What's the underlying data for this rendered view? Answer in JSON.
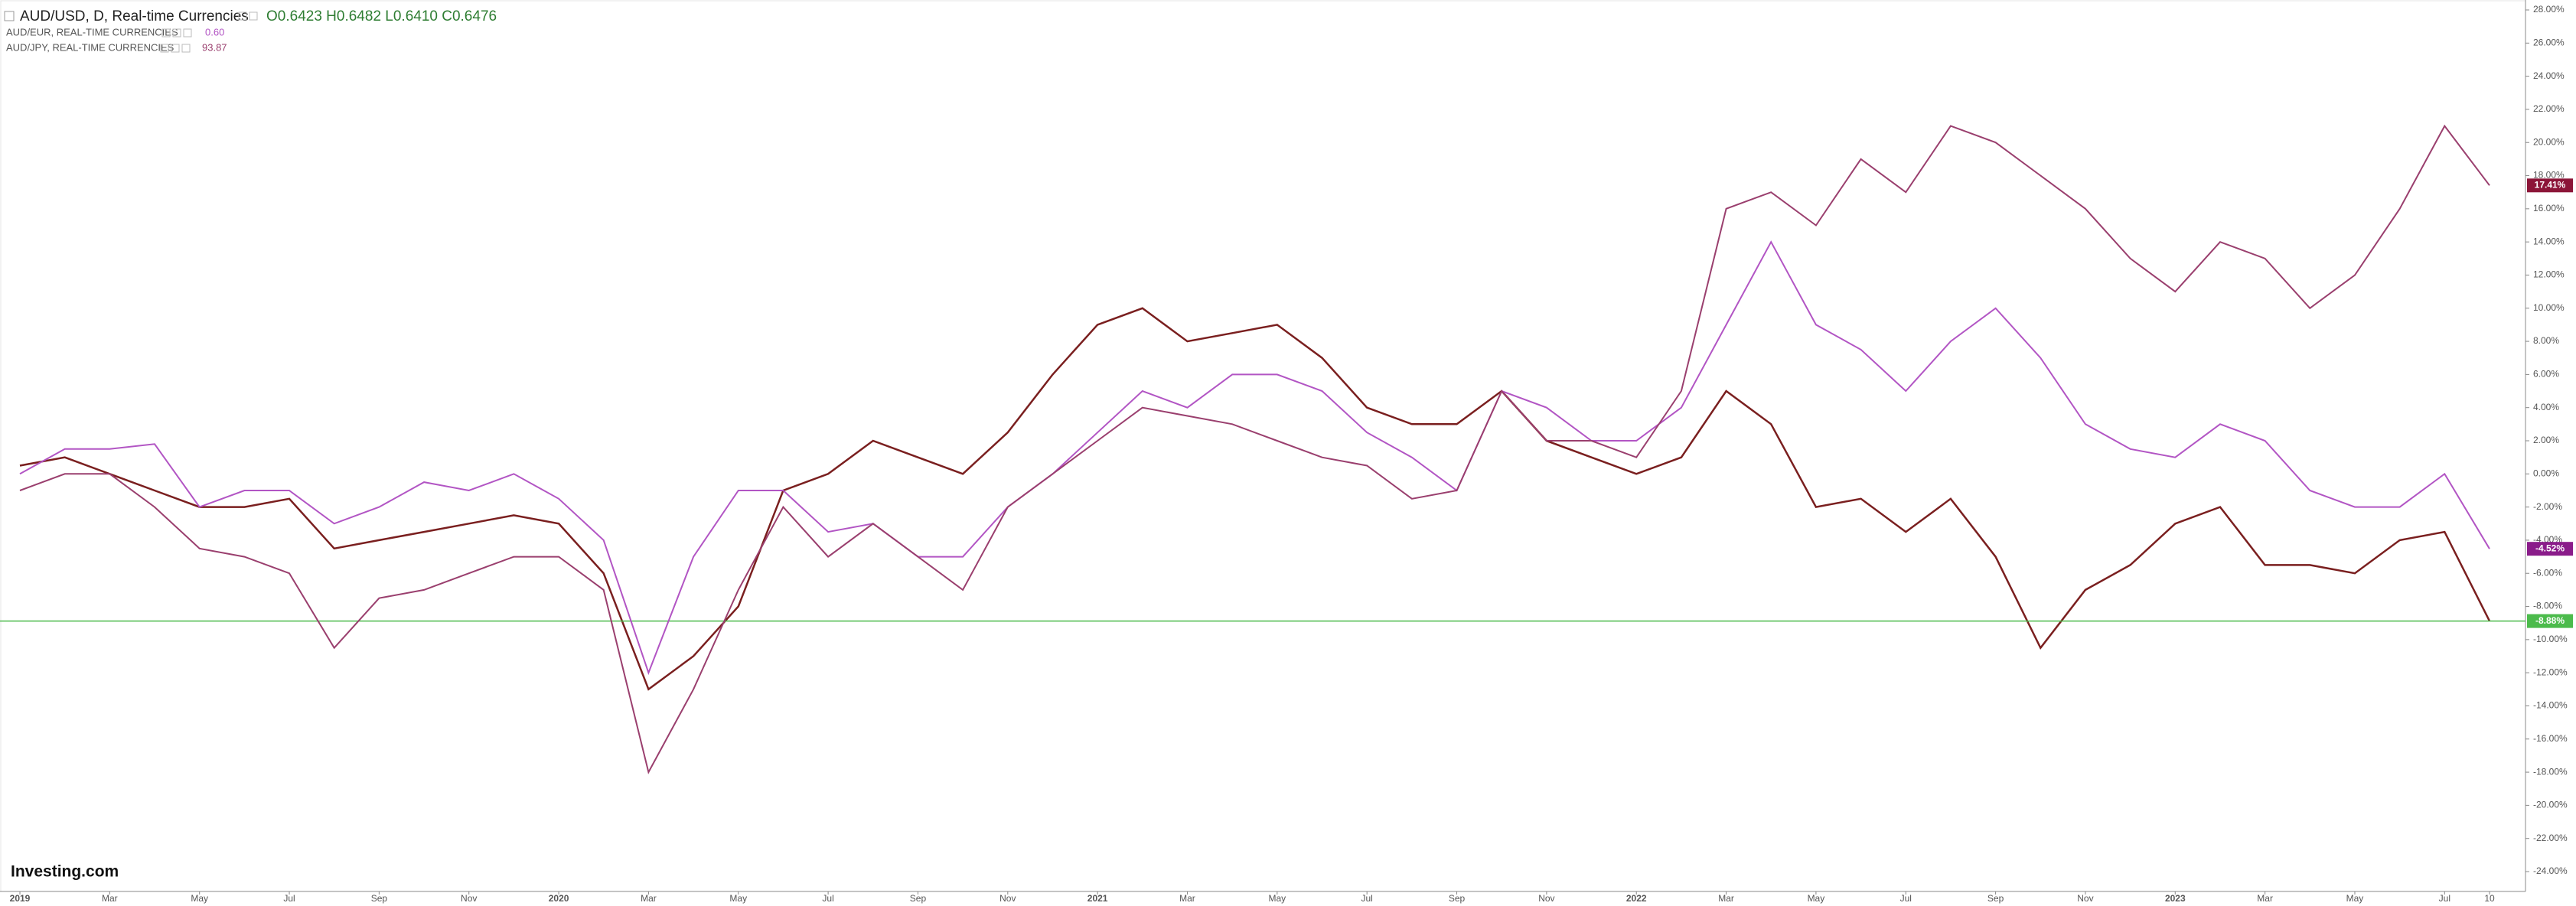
{
  "chart_data": {
    "type": "line",
    "ohlc_label": "O0.6423 H0.6482 L0.6410 C0.6476",
    "logo": "Investing.com",
    "x": [
      "2019-01",
      "2019-02",
      "2019-03",
      "2019-04",
      "2019-05",
      "2019-06",
      "2019-07",
      "2019-08",
      "2019-09",
      "2019-10",
      "2019-11",
      "2019-12",
      "2020-01",
      "2020-02",
      "2020-03",
      "2020-04",
      "2020-05",
      "2020-06",
      "2020-07",
      "2020-08",
      "2020-09",
      "2020-10",
      "2020-11",
      "2020-12",
      "2021-01",
      "2021-02",
      "2021-03",
      "2021-04",
      "2021-05",
      "2021-06",
      "2021-07",
      "2021-08",
      "2021-09",
      "2021-10",
      "2021-11",
      "2021-12",
      "2022-01",
      "2022-02",
      "2022-03",
      "2022-04",
      "2022-05",
      "2022-06",
      "2022-07",
      "2022-08",
      "2022-09",
      "2022-10",
      "2022-11",
      "2022-12",
      "2023-01",
      "2023-02",
      "2023-03",
      "2023-04",
      "2023-05",
      "2023-06",
      "2023-07",
      "2023-08"
    ],
    "series": [
      {
        "name": "AUD/USD, D, Real-time Currencies",
        "color": "#7a1f1f",
        "last_label": "-8.88%",
        "label_color": "#4cbb4c",
        "price_line": true,
        "values": [
          0.5,
          1,
          0,
          -1,
          -2,
          -2,
          -1.5,
          -4.5,
          -4,
          -3.5,
          -3,
          -2.5,
          -3,
          -6,
          -13,
          -11,
          -8,
          -1,
          0,
          2,
          1,
          0,
          2.5,
          6,
          9,
          10,
          8,
          8.5,
          9,
          7,
          4,
          3,
          3,
          5,
          2,
          1,
          0,
          1,
          5,
          3,
          -2,
          -1.5,
          -3.5,
          -1.5,
          -5,
          -10.5,
          -7,
          -5.5,
          -3,
          -2,
          -5.5,
          -5.5,
          -6,
          -4,
          -3.5,
          -8.88
        ]
      },
      {
        "name": "AUD/EUR, REAL-TIME CURRENCIES",
        "quote": "0.60",
        "color": "#b255c4",
        "last_label": "-4.52%",
        "label_color": "#8a1c8a",
        "values": [
          0,
          1.5,
          1.5,
          1.8,
          -2,
          -1,
          -1,
          -3,
          -2,
          -0.5,
          -1,
          0,
          -1.5,
          -4,
          -12,
          -5,
          -1,
          -1,
          -3.5,
          -3,
          -5,
          -5,
          -2,
          0,
          2.5,
          5,
          4,
          6,
          6,
          5,
          2.5,
          1,
          -1,
          5,
          4,
          2,
          2,
          4,
          9,
          14,
          9,
          7.5,
          5,
          8,
          10,
          7,
          3,
          1.5,
          1,
          3,
          2,
          -1,
          -2,
          -2,
          0,
          -4.52
        ]
      },
      {
        "name": "AUD/JPY, REAL-TIME CURRENCIES",
        "quote": "93.87",
        "color": "#9a3f6e",
        "last_label": "17.41%",
        "label_color": "#8c1538",
        "values": [
          -1,
          0,
          0,
          -2,
          -4.5,
          -5,
          -6,
          -10.5,
          -7.5,
          -7,
          -6,
          -5,
          -5,
          -7,
          -18,
          -13,
          -7,
          -2,
          -5,
          -3,
          -5,
          -7,
          -2,
          0,
          2,
          4,
          3.5,
          3,
          2,
          1,
          0.5,
          -1.5,
          -1,
          5,
          2,
          2,
          1,
          5,
          16,
          17,
          15,
          19,
          17,
          21,
          20,
          18,
          16,
          13,
          11,
          14,
          13,
          10,
          12,
          16,
          21,
          17.41
        ]
      }
    ],
    "xlim": [
      "2019-01",
      "2023-08"
    ],
    "xticks": [
      {
        "value": "2019-01",
        "label": "2019"
      },
      {
        "value": "2019-03",
        "label": "Mar"
      },
      {
        "value": "2019-05",
        "label": "May"
      },
      {
        "value": "2019-07",
        "label": "Jul"
      },
      {
        "value": "2019-09",
        "label": "Sep"
      },
      {
        "value": "2019-11",
        "label": "Nov"
      },
      {
        "value": "2020-01",
        "label": "2020"
      },
      {
        "value": "2020-03",
        "label": "Mar"
      },
      {
        "value": "2020-05",
        "label": "May"
      },
      {
        "value": "2020-07",
        "label": "Jul"
      },
      {
        "value": "2020-09",
        "label": "Sep"
      },
      {
        "value": "2020-11",
        "label": "Nov"
      },
      {
        "value": "2021-01",
        "label": "2021"
      },
      {
        "value": "2021-03",
        "label": "Mar"
      },
      {
        "value": "2021-05",
        "label": "May"
      },
      {
        "value": "2021-07",
        "label": "Jul"
      },
      {
        "value": "2021-09",
        "label": "Sep"
      },
      {
        "value": "2021-11",
        "label": "Nov"
      },
      {
        "value": "2022-01",
        "label": "2022"
      },
      {
        "value": "2022-03",
        "label": "Mar"
      },
      {
        "value": "2022-05",
        "label": "May"
      },
      {
        "value": "2022-07",
        "label": "Jul"
      },
      {
        "value": "2022-09",
        "label": "Sep"
      },
      {
        "value": "2022-11",
        "label": "Nov"
      },
      {
        "value": "2023-01",
        "label": "2023"
      },
      {
        "value": "2023-03",
        "label": "Mar"
      },
      {
        "value": "2023-05",
        "label": "May"
      },
      {
        "value": "2023-07",
        "label": "Jul"
      },
      {
        "value": "2023-08",
        "label": "10"
      }
    ],
    "ylim": [
      -25.2,
      28.6
    ],
    "yticks": [
      {
        "value": 28,
        "label": "28.00%"
      },
      {
        "value": 26,
        "label": "26.00%"
      },
      {
        "value": 24,
        "label": "24.00%"
      },
      {
        "value": 22,
        "label": "22.00%"
      },
      {
        "value": 20,
        "label": "20.00%"
      },
      {
        "value": 18,
        "label": "18.00%"
      },
      {
        "value": 16,
        "label": "16.00%"
      },
      {
        "value": 14,
        "label": "14.00%"
      },
      {
        "value": 12,
        "label": "12.00%"
      },
      {
        "value": 10,
        "label": "10.00%"
      },
      {
        "value": 8,
        "label": "8.00%"
      },
      {
        "value": 6,
        "label": "6.00%"
      },
      {
        "value": 4,
        "label": "4.00%"
      },
      {
        "value": 2,
        "label": "2.00%"
      },
      {
        "value": 0,
        "label": "0.00%"
      },
      {
        "value": -2,
        "label": "-2.00%"
      },
      {
        "value": -4,
        "label": "-4.00%"
      },
      {
        "value": -6,
        "label": "-6.00%"
      },
      {
        "value": -8,
        "label": "-8.00%"
      },
      {
        "value": -10,
        "label": "-10.00%"
      },
      {
        "value": -12,
        "label": "-12.00%"
      },
      {
        "value": -14,
        "label": "-14.00%"
      },
      {
        "value": -16,
        "label": "-16.00%"
      },
      {
        "value": -18,
        "label": "-18.00%"
      },
      {
        "value": -20,
        "label": "-20.00%"
      },
      {
        "value": -22,
        "label": "-22.00%"
      },
      {
        "value": -24,
        "label": "-24.00%"
      }
    ],
    "grid": false
  }
}
